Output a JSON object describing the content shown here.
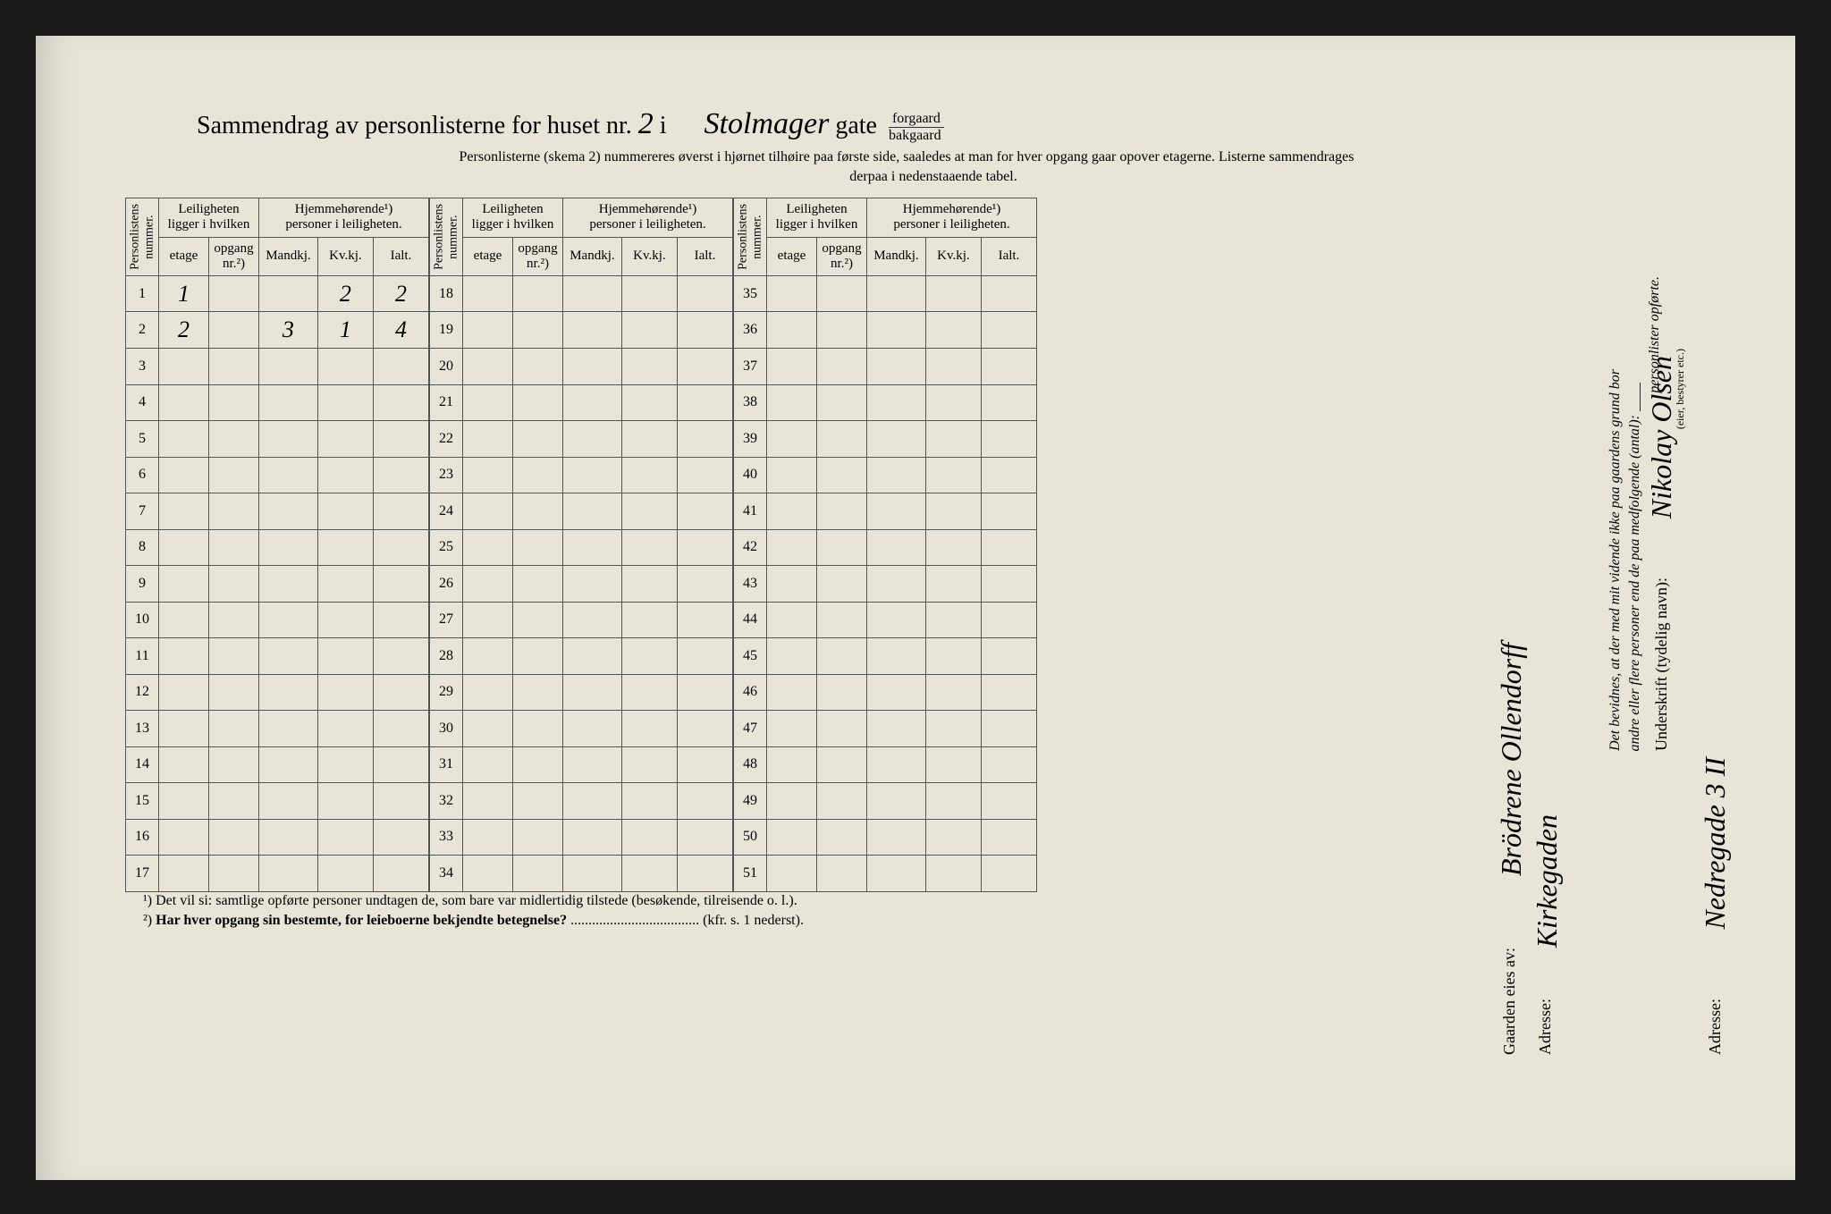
{
  "page": {
    "background": "#e8e4d8",
    "text_color": "#2a2a2a",
    "border_color": "#555555"
  },
  "title": {
    "prefix": "Sammendrag av personlisterne for huset nr.",
    "house_nr": "2",
    "mid": "i",
    "street_hand": "Stolmager",
    "street_suffix": "gate",
    "suffix_top": "forgaard",
    "suffix_bottom": "bakgaard"
  },
  "subtitle": "Personlisterne (skema 2) nummereres øverst i hjørnet tilhøire paa første side, saaledes at man for hver opgang gaar opover etagerne.  Listerne sammendrages",
  "subtitle2": "derpaa i nedenstaaende tabel.",
  "headers": {
    "personlistens": "Personlistens\nnummer.",
    "leiligheten": "Leiligheten\nligger i hvilken",
    "hjemme": "Hjemmehørende¹)\npersoner i leiligheten.",
    "etage": "etage",
    "opgang": "opgang\nnr.²)",
    "mandkj": "Mandkj.",
    "kvkj": "Kv.kj.",
    "ialt": "Ialt."
  },
  "blocks": [
    {
      "start": 1,
      "end": 17
    },
    {
      "start": 18,
      "end": 34
    },
    {
      "start": 35,
      "end": 51
    }
  ],
  "data_rows": {
    "1": {
      "etage": "1",
      "opgang": "",
      "mandkj": "",
      "kvkj": "2",
      "ialt": "2"
    },
    "2": {
      "etage": "2",
      "opgang": "",
      "mandkj": "3",
      "kvkj": "1",
      "ialt": "4"
    }
  },
  "footnotes": {
    "fn1": "¹)   Det vil si: samtlige opførte personer undtagen de, som bare var midlertidig tilstede (besøkende, tilreisende o. l.).",
    "fn2_label": "²)   ",
    "fn2_bold": "Har hver opgang sin bestemte, for leieboerne bekjendte betegnelse?",
    "fn2_tail": " .................................... (kfr. s. 1 nederst)."
  },
  "sidebar": {
    "owner_label": "Gaarden eies av:",
    "owner_hand": "Brödrene Ollendorff",
    "addr1_label": "Adresse:",
    "addr1_hand": "Kirkegaden",
    "attest": "Det bevidnes, at der med mit vidende ikke paa gaardens grund bor",
    "attest2": "andre eller flere personer end de paa medfolgende (antal): ____",
    "attest3": "personlister opførte.",
    "sign_label": "Underskrift (tydelig navn):",
    "sign_hand": "Nikolay Olsen",
    "sign_sub": "(eier, bestyrer etc.)",
    "addr2_label": "Adresse:",
    "addr2_hand": "Nedregade 3 II"
  }
}
